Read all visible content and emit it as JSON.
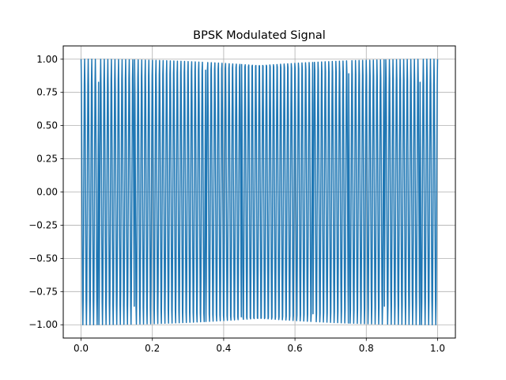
{
  "chart_data": {
    "type": "line",
    "title": "BPSK Modulated Signal",
    "xlabel": "",
    "ylabel": "",
    "xlim": [
      -0.05,
      1.05
    ],
    "ylim": [
      -1.1,
      1.1
    ],
    "x_ticks": [
      0.0,
      0.2,
      0.4,
      0.6,
      0.8,
      1.0
    ],
    "x_tick_labels": [
      "0.0",
      "0.2",
      "0.4",
      "0.6",
      "0.8",
      "1.0"
    ],
    "y_ticks": [
      1.0,
      0.75,
      0.5,
      0.25,
      0.0,
      -0.25,
      -0.5,
      -0.75,
      -1.0
    ],
    "y_tick_labels": [
      "1.00",
      "0.75",
      "0.50",
      "0.25",
      "0.00",
      "−0.25",
      "−0.50",
      "−0.75",
      "−1.00"
    ],
    "grid": true,
    "series": [
      {
        "color": "#1f77b4",
        "carrier_frequency": 100,
        "t_start": 0.0,
        "t_end": 1.0,
        "samples": 1000,
        "phase_flips_at": [
          0.05,
          0.15,
          0.35,
          0.45,
          0.65,
          0.75,
          0.85,
          0.95
        ]
      }
    ]
  }
}
